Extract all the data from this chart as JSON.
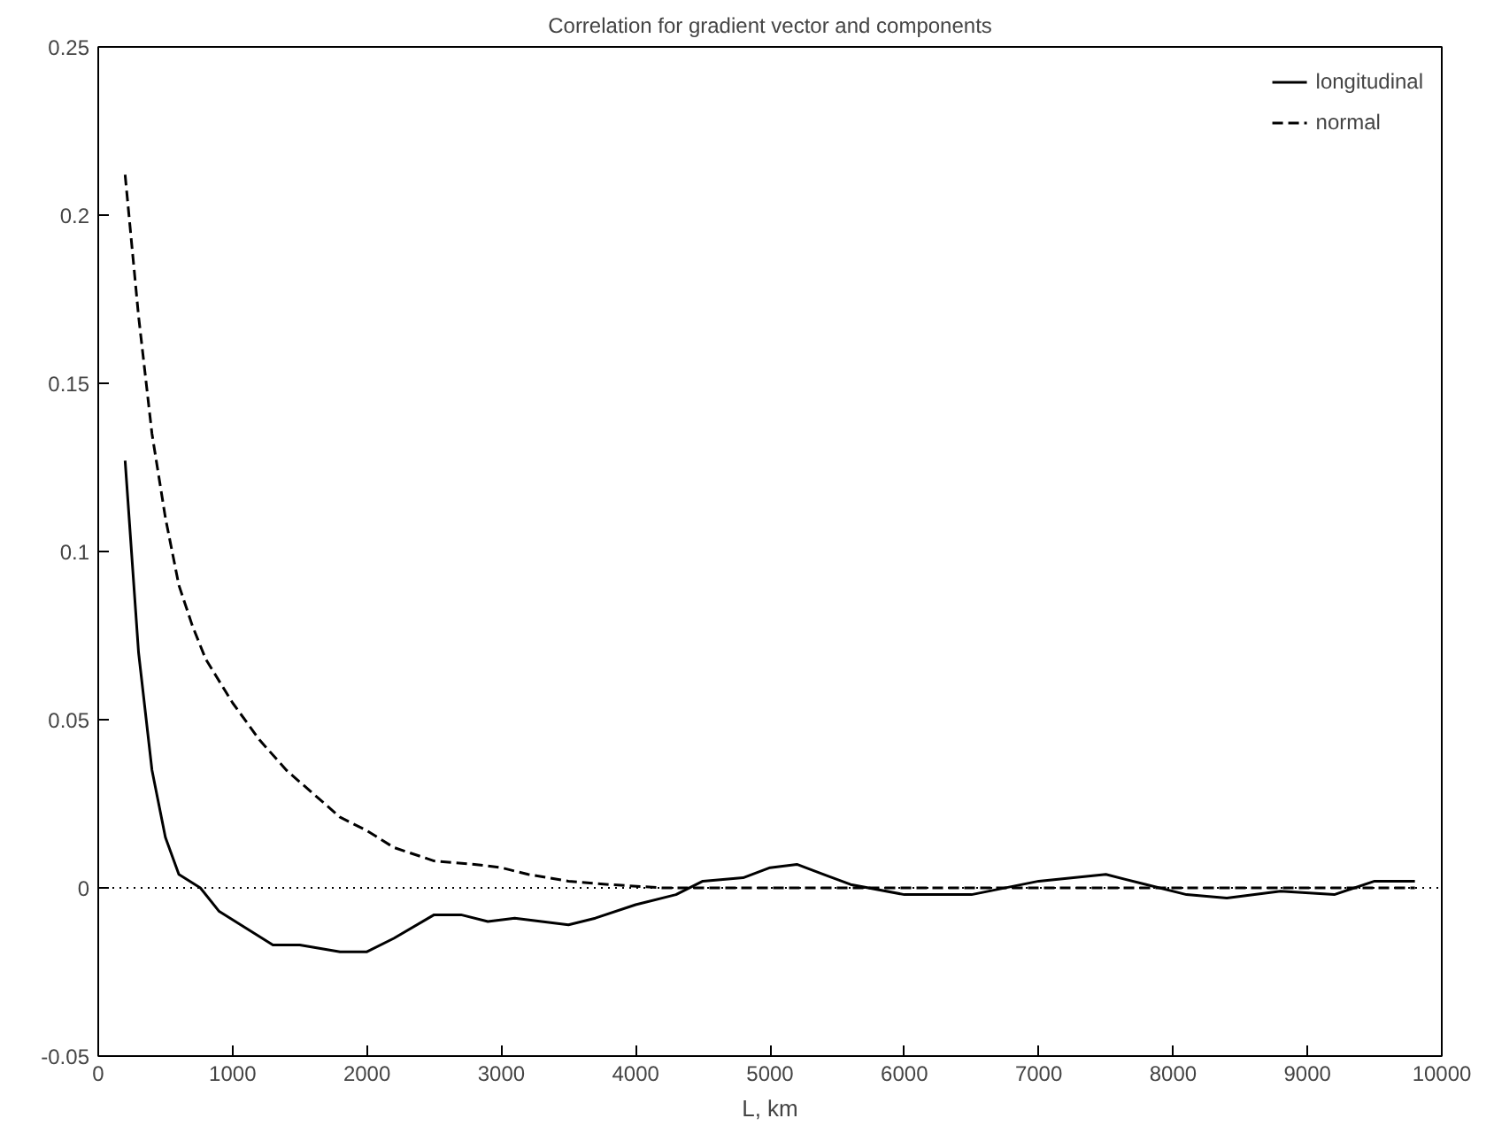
{
  "chart_data": {
    "type": "line",
    "title": "Correlation for gradient vector and components",
    "xlabel": "L, km",
    "xlim": [
      0,
      10000
    ],
    "ylim": [
      -0.05,
      0.25
    ],
    "xticks": [
      0,
      1000,
      2000,
      3000,
      4000,
      5000,
      6000,
      7000,
      8000,
      9000,
      10000
    ],
    "yticks": [
      -0.05,
      0,
      0.05,
      0.1,
      0.15,
      0.2,
      0.25
    ],
    "grid": false,
    "legend": "top right",
    "ref_lines": [
      {
        "axis": "y",
        "value": 0,
        "line_style": "dotted",
        "color": "#000000"
      }
    ],
    "series": [
      {
        "name": "longitudinal",
        "color": "#000000",
        "line_style": "solid",
        "x": [
          200,
          300,
          400,
          500,
          600,
          760,
          900,
          1100,
          1300,
          1500,
          1800,
          2000,
          2200,
          2500,
          2700,
          2900,
          3100,
          3300,
          3500,
          3700,
          4000,
          4300,
          4500,
          4800,
          5000,
          5200,
          5400,
          5600,
          6000,
          6500,
          7000,
          7500,
          7800,
          8100,
          8400,
          8800,
          9200,
          9500,
          9800
        ],
        "values": [
          0.127,
          0.07,
          0.035,
          0.015,
          0.004,
          0,
          -0.007,
          -0.012,
          -0.017,
          -0.017,
          -0.019,
          -0.019,
          -0.015,
          -0.008,
          -0.008,
          -0.01,
          -0.009,
          -0.01,
          -0.011,
          -0.009,
          -0.005,
          -0.002,
          0.002,
          0.003,
          0.006,
          0.007,
          0.004,
          0.001,
          -0.002,
          -0.002,
          0.002,
          0.004,
          0.001,
          -0.002,
          -0.003,
          -0.001,
          -0.002,
          0.002,
          0.002
        ]
      },
      {
        "name": "normal",
        "color": "#000000",
        "line_style": "dashed",
        "x": [
          200,
          300,
          400,
          500,
          600,
          700,
          800,
          1000,
          1200,
          1400,
          1600,
          1800,
          2000,
          2200,
          2500,
          2800,
          3000,
          3200,
          3500,
          3800,
          4200,
          5000,
          6000,
          7000,
          8000,
          9000,
          9800
        ],
        "values": [
          0.212,
          0.17,
          0.135,
          0.11,
          0.09,
          0.078,
          0.068,
          0.055,
          0.044,
          0.035,
          0.028,
          0.021,
          0.017,
          0.012,
          0.008,
          0.007,
          0.006,
          0.004,
          0.002,
          0.001,
          0,
          0,
          0,
          0,
          0,
          0,
          0
        ]
      }
    ]
  }
}
